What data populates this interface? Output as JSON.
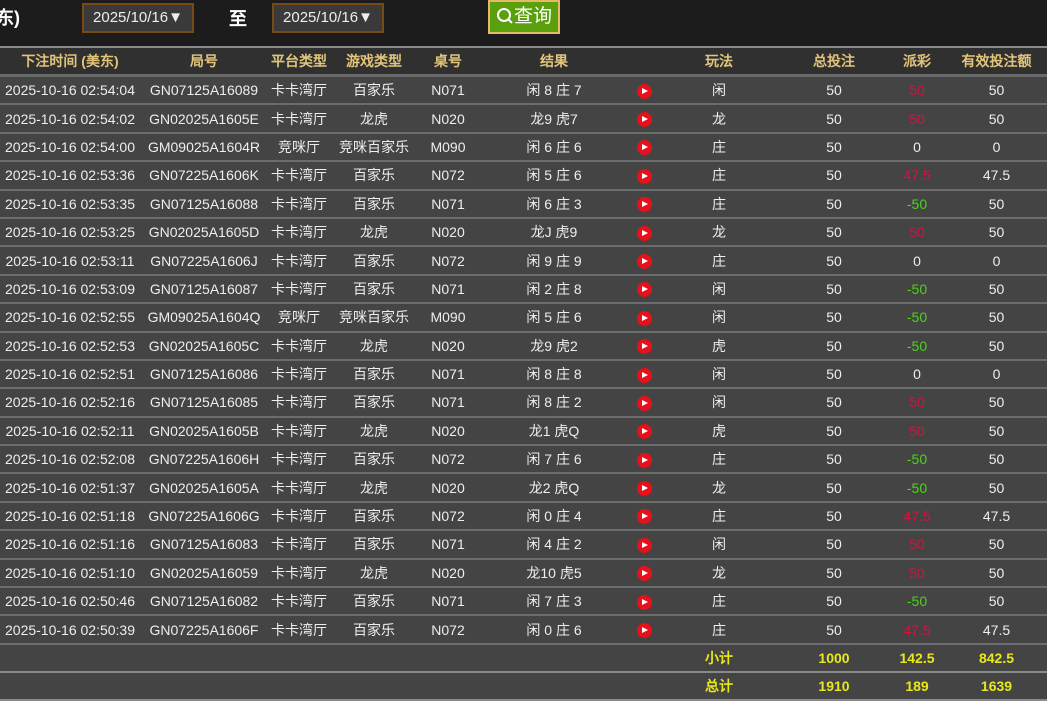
{
  "filter": {
    "label_tail": "东)",
    "from_date": "2025/10/16▼",
    "to_label": "至",
    "to_date": "2025/10/16▼",
    "query_button": "查询"
  },
  "columns": [
    "下注时间 (美东)",
    "局号",
    "平台类型",
    "游戏类型",
    "桌号",
    "结果",
    "",
    "玩法",
    "总投注",
    "派彩",
    "有效投注额"
  ],
  "colors": {
    "win": "#d2143c",
    "loss": "#4cd31a",
    "neutral": "#eeeeee",
    "header": "#e2c57a",
    "summary": "#e8e81a"
  },
  "rows": [
    {
      "time": "2025-10-16 02:54:04",
      "round": "GN07125A16089",
      "platform": "卡卡湾厅",
      "game": "百家乐",
      "table": "N071",
      "result": "闲 8 庄 7",
      "bet": "闲",
      "total": "50",
      "payout": "50",
      "payout_color": "win",
      "valid": "50"
    },
    {
      "time": "2025-10-16 02:54:02",
      "round": "GN02025A1605E",
      "platform": "卡卡湾厅",
      "game": "龙虎",
      "table": "N020",
      "result": "龙9 虎7",
      "bet": "龙",
      "total": "50",
      "payout": "50",
      "payout_color": "win",
      "valid": "50"
    },
    {
      "time": "2025-10-16 02:54:00",
      "round": "GM09025A1604R",
      "platform": "竞咪厅",
      "game": "竞咪百家乐",
      "table": "M090",
      "result": "闲 6 庄 6",
      "bet": "庄",
      "total": "50",
      "payout": "0",
      "payout_color": "neutral",
      "valid": "0"
    },
    {
      "time": "2025-10-16 02:53:36",
      "round": "GN07225A1606K",
      "platform": "卡卡湾厅",
      "game": "百家乐",
      "table": "N072",
      "result": "闲 5 庄 6",
      "bet": "庄",
      "total": "50",
      "payout": "47.5",
      "payout_color": "win",
      "valid": "47.5"
    },
    {
      "time": "2025-10-16 02:53:35",
      "round": "GN07125A16088",
      "platform": "卡卡湾厅",
      "game": "百家乐",
      "table": "N071",
      "result": "闲 6 庄 3",
      "bet": "庄",
      "total": "50",
      "payout": "-50",
      "payout_color": "loss",
      "valid": "50"
    },
    {
      "time": "2025-10-16 02:53:25",
      "round": "GN02025A1605D",
      "platform": "卡卡湾厅",
      "game": "龙虎",
      "table": "N020",
      "result": "龙J 虎9",
      "bet": "龙",
      "total": "50",
      "payout": "50",
      "payout_color": "win",
      "valid": "50"
    },
    {
      "time": "2025-10-16 02:53:11",
      "round": "GN07225A1606J",
      "platform": "卡卡湾厅",
      "game": "百家乐",
      "table": "N072",
      "result": "闲 9 庄 9",
      "bet": "庄",
      "total": "50",
      "payout": "0",
      "payout_color": "neutral",
      "valid": "0"
    },
    {
      "time": "2025-10-16 02:53:09",
      "round": "GN07125A16087",
      "platform": "卡卡湾厅",
      "game": "百家乐",
      "table": "N071",
      "result": "闲 2 庄 8",
      "bet": "闲",
      "total": "50",
      "payout": "-50",
      "payout_color": "loss",
      "valid": "50"
    },
    {
      "time": "2025-10-16 02:52:55",
      "round": "GM09025A1604Q",
      "platform": "竞咪厅",
      "game": "竞咪百家乐",
      "table": "M090",
      "result": "闲 5 庄 6",
      "bet": "闲",
      "total": "50",
      "payout": "-50",
      "payout_color": "loss",
      "valid": "50"
    },
    {
      "time": "2025-10-16 02:52:53",
      "round": "GN02025A1605C",
      "platform": "卡卡湾厅",
      "game": "龙虎",
      "table": "N020",
      "result": "龙9 虎2",
      "bet": "虎",
      "total": "50",
      "payout": "-50",
      "payout_color": "loss",
      "valid": "50"
    },
    {
      "time": "2025-10-16 02:52:51",
      "round": "GN07125A16086",
      "platform": "卡卡湾厅",
      "game": "百家乐",
      "table": "N071",
      "result": "闲 8 庄 8",
      "bet": "闲",
      "total": "50",
      "payout": "0",
      "payout_color": "neutral",
      "valid": "0"
    },
    {
      "time": "2025-10-16 02:52:16",
      "round": "GN07125A16085",
      "platform": "卡卡湾厅",
      "game": "百家乐",
      "table": "N071",
      "result": "闲 8 庄 2",
      "bet": "闲",
      "total": "50",
      "payout": "50",
      "payout_color": "win",
      "valid": "50"
    },
    {
      "time": "2025-10-16 02:52:11",
      "round": "GN02025A1605B",
      "platform": "卡卡湾厅",
      "game": "龙虎",
      "table": "N020",
      "result": "龙1 虎Q",
      "bet": "虎",
      "total": "50",
      "payout": "50",
      "payout_color": "win",
      "valid": "50"
    },
    {
      "time": "2025-10-16 02:52:08",
      "round": "GN07225A1606H",
      "platform": "卡卡湾厅",
      "game": "百家乐",
      "table": "N072",
      "result": "闲 7 庄 6",
      "bet": "庄",
      "total": "50",
      "payout": "-50",
      "payout_color": "loss",
      "valid": "50"
    },
    {
      "time": "2025-10-16 02:51:37",
      "round": "GN02025A1605A",
      "platform": "卡卡湾厅",
      "game": "龙虎",
      "table": "N020",
      "result": "龙2 虎Q",
      "bet": "龙",
      "total": "50",
      "payout": "-50",
      "payout_color": "loss",
      "valid": "50"
    },
    {
      "time": "2025-10-16 02:51:18",
      "round": "GN07225A1606G",
      "platform": "卡卡湾厅",
      "game": "百家乐",
      "table": "N072",
      "result": "闲 0 庄 4",
      "bet": "庄",
      "total": "50",
      "payout": "47.5",
      "payout_color": "win",
      "valid": "47.5"
    },
    {
      "time": "2025-10-16 02:51:16",
      "round": "GN07125A16083",
      "platform": "卡卡湾厅",
      "game": "百家乐",
      "table": "N071",
      "result": "闲 4 庄 2",
      "bet": "闲",
      "total": "50",
      "payout": "50",
      "payout_color": "win",
      "valid": "50"
    },
    {
      "time": "2025-10-16 02:51:10",
      "round": "GN02025A16059",
      "platform": "卡卡湾厅",
      "game": "龙虎",
      "table": "N020",
      "result": "龙10 虎5",
      "bet": "龙",
      "total": "50",
      "payout": "50",
      "payout_color": "win",
      "valid": "50"
    },
    {
      "time": "2025-10-16 02:50:46",
      "round": "GN07125A16082",
      "platform": "卡卡湾厅",
      "game": "百家乐",
      "table": "N071",
      "result": "闲 7 庄 3",
      "bet": "庄",
      "total": "50",
      "payout": "-50",
      "payout_color": "loss",
      "valid": "50"
    },
    {
      "time": "2025-10-16 02:50:39",
      "round": "GN07225A1606F",
      "platform": "卡卡湾厅",
      "game": "百家乐",
      "table": "N072",
      "result": "闲 0 庄 6",
      "bet": "庄",
      "total": "50",
      "payout": "47.5",
      "payout_color": "win",
      "valid": "47.5"
    }
  ],
  "subtotal": {
    "label": "小计",
    "total": "1000",
    "payout": "142.5",
    "valid": "842.5"
  },
  "grand_total": {
    "label": "总计",
    "total": "1910",
    "payout": "189",
    "valid": "1639"
  }
}
